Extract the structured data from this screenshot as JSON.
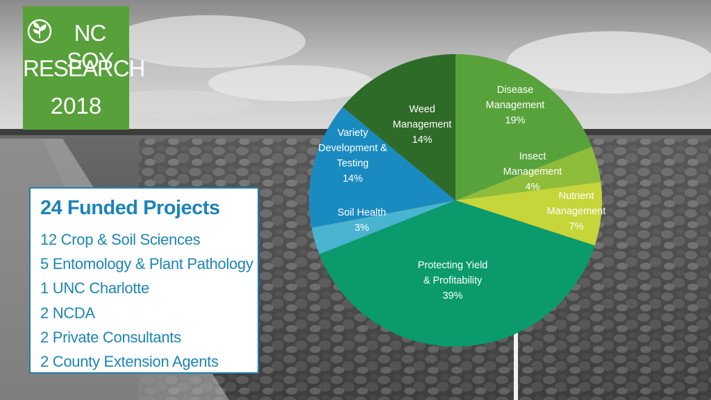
{
  "logo": {
    "line1": "NC SOY",
    "line2": "RESEARCH",
    "line3": "2018",
    "icon": "soybean-leaf-icon",
    "color": "#57a03a"
  },
  "projects": {
    "title": "24 Funded Projects",
    "items": [
      "12 Crop & Soil Sciences",
      "5 Entomology & Plant Pathology",
      "1 UNC Charlotte",
      "2 NCDA",
      "2 Private Consultants",
      "2 County Extension Agents"
    ],
    "color": "#1c84b8"
  },
  "chart_data": {
    "type": "pie",
    "title": "",
    "legend": "none",
    "slices": [
      {
        "label": [
          "Disease",
          "Management"
        ],
        "pct_label": "19%",
        "value": 19,
        "color": "#58a23c"
      },
      {
        "label": [
          "Insect",
          "Management"
        ],
        "pct_label": "4%",
        "value": 4,
        "color": "#8dbd3a"
      },
      {
        "label": [
          "Nutrient",
          "Management"
        ],
        "pct_label": "7%",
        "value": 7,
        "color": "#c6d53a"
      },
      {
        "label": [
          "Protecting Yield",
          "& Profitability"
        ],
        "pct_label": "39%",
        "value": 39,
        "color": "#0a9a6c"
      },
      {
        "label": [
          "Soil Health"
        ],
        "pct_label": "3%",
        "value": 3,
        "color": "#48b4d0"
      },
      {
        "label": [
          "Variety",
          "Development &",
          "Testing"
        ],
        "pct_label": "14%",
        "value": 14,
        "color": "#1a8bc0"
      },
      {
        "label": [
          "Weed",
          "Management"
        ],
        "pct_label": "14%",
        "value": 14,
        "color": "#2f6b28"
      }
    ]
  }
}
